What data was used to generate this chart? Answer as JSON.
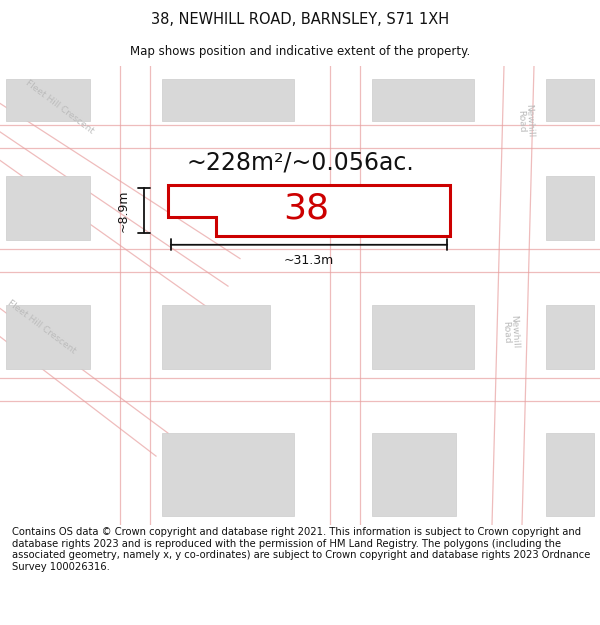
{
  "title": "38, NEWHILL ROAD, BARNSLEY, S71 1XH",
  "subtitle": "Map shows position and indicative extent of the property.",
  "area_text": "~228m²/~0.056ac.",
  "number_label": "38",
  "dim_width": "~31.3m",
  "dim_height": "~8.9m",
  "map_bg": "#f2f2f2",
  "road_line_color": "#e8a0a0",
  "plot_color": "#ffffff",
  "plot_edge_color": "#cc0000",
  "building_color": "#d8d8d8",
  "building_edge_color": "#cccccc",
  "road_label_color": "#bbbbbb",
  "dim_line_color": "#111111",
  "text_color": "#111111",
  "footer_text": "Contains OS data © Crown copyright and database right 2021. This information is subject to Crown copyright and database rights 2023 and is reproduced with the permission of HM Land Registry. The polygons (including the associated geometry, namely x, y co-ordinates) are subject to Crown copyright and database rights 2023 Ordnance Survey 100026316.",
  "title_fontsize": 10.5,
  "subtitle_fontsize": 8.5,
  "area_fontsize": 17,
  "number_fontsize": 26,
  "road_label_fontsize": 6.5,
  "footer_fontsize": 7.2,
  "road_lw": 0.9,
  "road_alpha": 0.7,
  "bld_lw": 0.5,
  "plot_lw": 2.2
}
